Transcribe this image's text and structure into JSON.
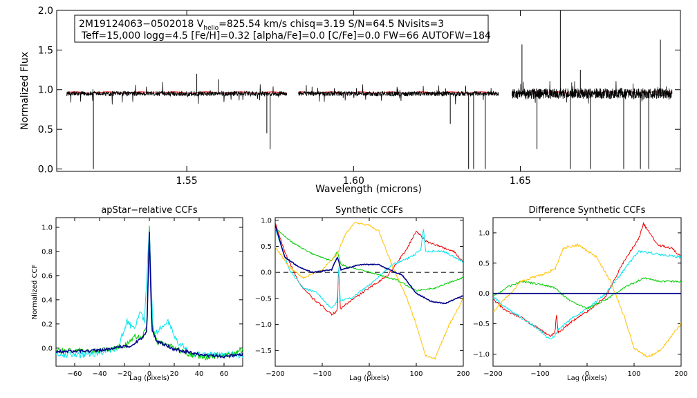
{
  "chart_data": [
    {
      "id": "spectrum",
      "type": "line",
      "xlabel": "Wavelength (microns)",
      "ylabel": "Normalized Flux",
      "xlim": [
        1.511,
        1.698
      ],
      "ylim": [
        -0.03,
        2.0
      ],
      "xticks": [
        1.55,
        1.6,
        1.65
      ],
      "xtick_labels": [
        "1.55",
        "1.60",
        "1.65"
      ],
      "yticks": [
        0.0,
        0.5,
        1.0,
        1.5,
        2.0
      ],
      "ytick_labels": [
        "0.0",
        "0.5",
        "1.0",
        "1.5",
        "2.0"
      ],
      "chips": [
        [
          1.514,
          1.58
        ],
        [
          1.5835,
          1.6435
        ],
        [
          1.6475,
          1.6955
        ]
      ],
      "annotation": {
        "line1_prefix": "2M19124063−0502018  V",
        "line1_sub": "helio",
        "line1_suffix": "=825.54 km/s  chisq=3.19  S/N=64.5  Nvisits=3",
        "line2": "Teff=15,000 logg=4.5 [Fe/H]=0.32 [alpha/Fe]=0.0 [C/Fe]=0.0 FW=66 AUTOFW=184"
      },
      "series": [
        {
          "name": "observed",
          "color": "#000000",
          "base": 0.95,
          "noise": 0.03,
          "features": [
            [
              1.522,
              0.0
            ],
            [
              1.553,
              1.2
            ],
            [
              1.5595,
              1.13
            ],
            [
              1.574,
              0.45
            ],
            [
              1.575,
              0.25
            ],
            [
              1.629,
              0.57
            ],
            [
              1.6345,
              0.0
            ],
            [
              1.636,
              0.0
            ],
            [
              1.6395,
              0.0
            ],
            [
              1.6505,
              1.57
            ],
            [
              1.655,
              0.25
            ],
            [
              1.662,
              2.0
            ],
            [
              1.665,
              0.0
            ],
            [
              1.668,
              1.25
            ],
            [
              1.671,
              0.0
            ],
            [
              1.681,
              0.0
            ],
            [
              1.686,
              0.0
            ],
            [
              1.6885,
              0.0
            ],
            [
              1.692,
              1.63
            ]
          ]
        },
        {
          "name": "model",
          "color": "#ff0000",
          "base": 0.965,
          "noise": 0.0,
          "features": []
        }
      ]
    },
    {
      "id": "apstar-ccf",
      "type": "line",
      "title": "apStar−relative CCFs",
      "xlabel": "Lag (pixels)",
      "ylabel": "Normalized CCF",
      "xlim": [
        -75,
        75
      ],
      "ylim": [
        -0.15,
        1.08
      ],
      "xticks": [
        -60,
        -40,
        -20,
        0,
        20,
        40,
        60
      ],
      "xtick_labels": [
        "−60",
        "−40",
        "−20",
        "0",
        "20",
        "40",
        "60"
      ],
      "yticks": [
        0.0,
        0.2,
        0.4,
        0.6,
        0.8,
        1.0
      ],
      "ytick_labels": [
        "0.0",
        "0.2",
        "0.4",
        "0.6",
        "0.8",
        "1.0"
      ],
      "series": [
        {
          "name": "cyan",
          "color": "#00e5ee",
          "noise": 0.025,
          "points": [
            [
              -75,
              -0.05
            ],
            [
              -50,
              -0.06
            ],
            [
              -25,
              0.0
            ],
            [
              -18,
              0.22
            ],
            [
              -12,
              0.15
            ],
            [
              -8,
              0.3
            ],
            [
              -4,
              0.22
            ],
            [
              0,
              0.99
            ],
            [
              3,
              0.12
            ],
            [
              8,
              0.15
            ],
            [
              15,
              0.22
            ],
            [
              22,
              0.06
            ],
            [
              35,
              -0.05
            ],
            [
              55,
              -0.05
            ],
            [
              75,
              -0.06
            ]
          ]
        },
        {
          "name": "green",
          "color": "#00cc00",
          "noise": 0.02,
          "points": [
            [
              -75,
              -0.02
            ],
            [
              -40,
              -0.02
            ],
            [
              -20,
              0.02
            ],
            [
              -12,
              0.1
            ],
            [
              -6,
              0.08
            ],
            [
              -2,
              0.2
            ],
            [
              0,
              1.0
            ],
            [
              2,
              0.2
            ],
            [
              6,
              0.05
            ],
            [
              15,
              0.03
            ],
            [
              30,
              -0.05
            ],
            [
              45,
              -0.08
            ],
            [
              60,
              -0.06
            ],
            [
              75,
              -0.02
            ]
          ]
        },
        {
          "name": "navy",
          "color": "#00008b",
          "noise": 0.012,
          "points": [
            [
              -75,
              -0.03
            ],
            [
              -40,
              -0.02
            ],
            [
              -15,
              0.02
            ],
            [
              -6,
              0.08
            ],
            [
              -2,
              0.15
            ],
            [
              0,
              0.96
            ],
            [
              2,
              0.15
            ],
            [
              6,
              0.06
            ],
            [
              20,
              -0.01
            ],
            [
              45,
              -0.06
            ],
            [
              60,
              -0.07
            ],
            [
              75,
              -0.05
            ]
          ]
        }
      ]
    },
    {
      "id": "synthetic-ccf",
      "type": "line",
      "title": "Synthetic CCFs",
      "xlabel": "Lag (pixels)",
      "xlim": [
        -200,
        200
      ],
      "ylim": [
        -1.8,
        1.05
      ],
      "xticks": [
        -200,
        -100,
        0,
        100,
        200
      ],
      "xtick_labels": [
        "−200",
        "−100",
        "0",
        "100",
        "200"
      ],
      "yticks": [
        -1.5,
        -1.0,
        -0.5,
        0.0,
        0.5,
        1.0
      ],
      "ytick_labels": [
        "−1.5",
        "−1.0",
        "−0.5",
        "0.0",
        "0.5",
        "1.0"
      ],
      "reference_line": {
        "y": 0.0,
        "style": "dashed",
        "color": "#555555"
      },
      "series": [
        {
          "name": "red",
          "color": "#ee0000",
          "noise": 0.02,
          "points": [
            [
              -200,
              0.95
            ],
            [
              -180,
              0.4
            ],
            [
              -150,
              -0.2
            ],
            [
              -120,
              -0.5
            ],
            [
              -80,
              -0.8
            ],
            [
              -68,
              -0.75
            ],
            [
              -65,
              0.2
            ],
            [
              -62,
              -0.7
            ],
            [
              -40,
              -0.55
            ],
            [
              0,
              -0.3
            ],
            [
              40,
              -0.05
            ],
            [
              80,
              0.45
            ],
            [
              100,
              0.8
            ],
            [
              120,
              0.6
            ],
            [
              150,
              0.5
            ],
            [
              180,
              0.4
            ],
            [
              200,
              0.2
            ]
          ]
        },
        {
          "name": "cyan",
          "color": "#00e5ee",
          "noise": 0.02,
          "points": [
            [
              -200,
              0.85
            ],
            [
              -170,
              0.05
            ],
            [
              -140,
              -0.3
            ],
            [
              -110,
              -0.4
            ],
            [
              -80,
              -0.7
            ],
            [
              -68,
              -0.55
            ],
            [
              -65,
              0.2
            ],
            [
              -62,
              -0.55
            ],
            [
              -40,
              -0.5
            ],
            [
              0,
              -0.25
            ],
            [
              50,
              0.15
            ],
            [
              90,
              0.3
            ],
            [
              110,
              0.45
            ],
            [
              115,
              0.85
            ],
            [
              120,
              0.4
            ],
            [
              160,
              0.4
            ],
            [
              200,
              0.2
            ]
          ]
        },
        {
          "name": "green",
          "color": "#00cc00",
          "noise": 0.015,
          "points": [
            [
              -200,
              0.85
            ],
            [
              -160,
              0.55
            ],
            [
              -120,
              0.35
            ],
            [
              -80,
              0.22
            ],
            [
              -68,
              0.4
            ],
            [
              -60,
              0.15
            ],
            [
              -20,
              0.05
            ],
            [
              20,
              -0.05
            ],
            [
              60,
              -0.15
            ],
            [
              100,
              -0.35
            ],
            [
              140,
              -0.3
            ],
            [
              200,
              -0.1
            ]
          ]
        },
        {
          "name": "gold",
          "color": "#ffc000",
          "noise": 0.02,
          "points": [
            [
              -200,
              0.5
            ],
            [
              -170,
              0.1
            ],
            [
              -140,
              -0.1
            ],
            [
              -100,
              0.05
            ],
            [
              -68,
              0.35
            ],
            [
              -50,
              0.75
            ],
            [
              -30,
              0.95
            ],
            [
              0,
              0.9
            ],
            [
              20,
              0.8
            ],
            [
              50,
              0.1
            ],
            [
              80,
              -0.5
            ],
            [
              100,
              -1.0
            ],
            [
              120,
              -1.6
            ],
            [
              140,
              -1.65
            ],
            [
              170,
              -1.0
            ],
            [
              200,
              -0.5
            ]
          ]
        },
        {
          "name": "navy",
          "color": "#00008b",
          "noise": 0.01,
          "points": [
            [
              -200,
              0.9
            ],
            [
              -180,
              0.3
            ],
            [
              -150,
              0.1
            ],
            [
              -120,
              0.0
            ],
            [
              -80,
              0.05
            ],
            [
              -68,
              0.3
            ],
            [
              -60,
              0.05
            ],
            [
              -20,
              0.15
            ],
            [
              20,
              0.15
            ],
            [
              50,
              0.02
            ],
            [
              70,
              -0.05
            ],
            [
              100,
              -0.4
            ],
            [
              130,
              -0.55
            ],
            [
              160,
              -0.6
            ],
            [
              200,
              -0.45
            ]
          ]
        }
      ]
    },
    {
      "id": "difference-ccf",
      "type": "line",
      "title": "Difference Synthetic CCFs",
      "xlabel": "Lag (pixels)",
      "xlim": [
        -200,
        200
      ],
      "ylim": [
        -1.2,
        1.25
      ],
      "xticks": [
        -200,
        -100,
        0,
        100,
        200
      ],
      "xtick_labels": [
        "−200",
        "−100",
        "0",
        "100",
        "200"
      ],
      "yticks": [
        -1.0,
        -0.5,
        0.0,
        0.5,
        1.0
      ],
      "ytick_labels": [
        "−1.0",
        "−0.5",
        "0.0",
        "0.5",
        "1.0"
      ],
      "series": [
        {
          "name": "red",
          "color": "#ee0000",
          "noise": 0.02,
          "points": [
            [
              -200,
              -0.1
            ],
            [
              -170,
              -0.3
            ],
            [
              -140,
              -0.4
            ],
            [
              -110,
              -0.55
            ],
            [
              -80,
              -0.7
            ],
            [
              -68,
              -0.65
            ],
            [
              -65,
              -0.3
            ],
            [
              -62,
              -0.65
            ],
            [
              -30,
              -0.45
            ],
            [
              0,
              -0.3
            ],
            [
              40,
              -0.05
            ],
            [
              80,
              0.55
            ],
            [
              110,
              0.9
            ],
            [
              120,
              1.15
            ],
            [
              150,
              0.8
            ],
            [
              180,
              0.75
            ],
            [
              200,
              0.6
            ]
          ]
        },
        {
          "name": "cyan",
          "color": "#00e5ee",
          "noise": 0.02,
          "points": [
            [
              -200,
              -0.05
            ],
            [
              -170,
              -0.25
            ],
            [
              -140,
              -0.4
            ],
            [
              -110,
              -0.55
            ],
            [
              -80,
              -0.75
            ],
            [
              -68,
              -0.7
            ],
            [
              -62,
              -0.6
            ],
            [
              -30,
              -0.4
            ],
            [
              0,
              -0.25
            ],
            [
              40,
              0.0
            ],
            [
              80,
              0.4
            ],
            [
              110,
              0.7
            ],
            [
              150,
              0.65
            ],
            [
              200,
              0.6
            ]
          ]
        },
        {
          "name": "green",
          "color": "#00cc00",
          "noise": 0.015,
          "points": [
            [
              -200,
              -0.05
            ],
            [
              -170,
              0.1
            ],
            [
              -140,
              0.2
            ],
            [
              -100,
              0.15
            ],
            [
              -70,
              0.1
            ],
            [
              -40,
              -0.1
            ],
            [
              0,
              -0.25
            ],
            [
              40,
              -0.1
            ],
            [
              80,
              0.1
            ],
            [
              120,
              0.25
            ],
            [
              160,
              0.2
            ],
            [
              200,
              0.2
            ]
          ]
        },
        {
          "name": "gold",
          "color": "#ffc000",
          "noise": 0.02,
          "points": [
            [
              -200,
              -0.3
            ],
            [
              -170,
              -0.05
            ],
            [
              -140,
              0.2
            ],
            [
              -100,
              0.3
            ],
            [
              -68,
              0.4
            ],
            [
              -50,
              0.75
            ],
            [
              -20,
              0.8
            ],
            [
              20,
              0.6
            ],
            [
              50,
              0.2
            ],
            [
              80,
              -0.4
            ],
            [
              100,
              -0.9
            ],
            [
              130,
              -1.05
            ],
            [
              160,
              -0.9
            ],
            [
              200,
              -0.5
            ]
          ]
        },
        {
          "name": "navy",
          "color": "#00008b",
          "noise": 0.0,
          "points": [
            [
              -200,
              0.0
            ],
            [
              200,
              0.0
            ]
          ]
        }
      ]
    }
  ]
}
